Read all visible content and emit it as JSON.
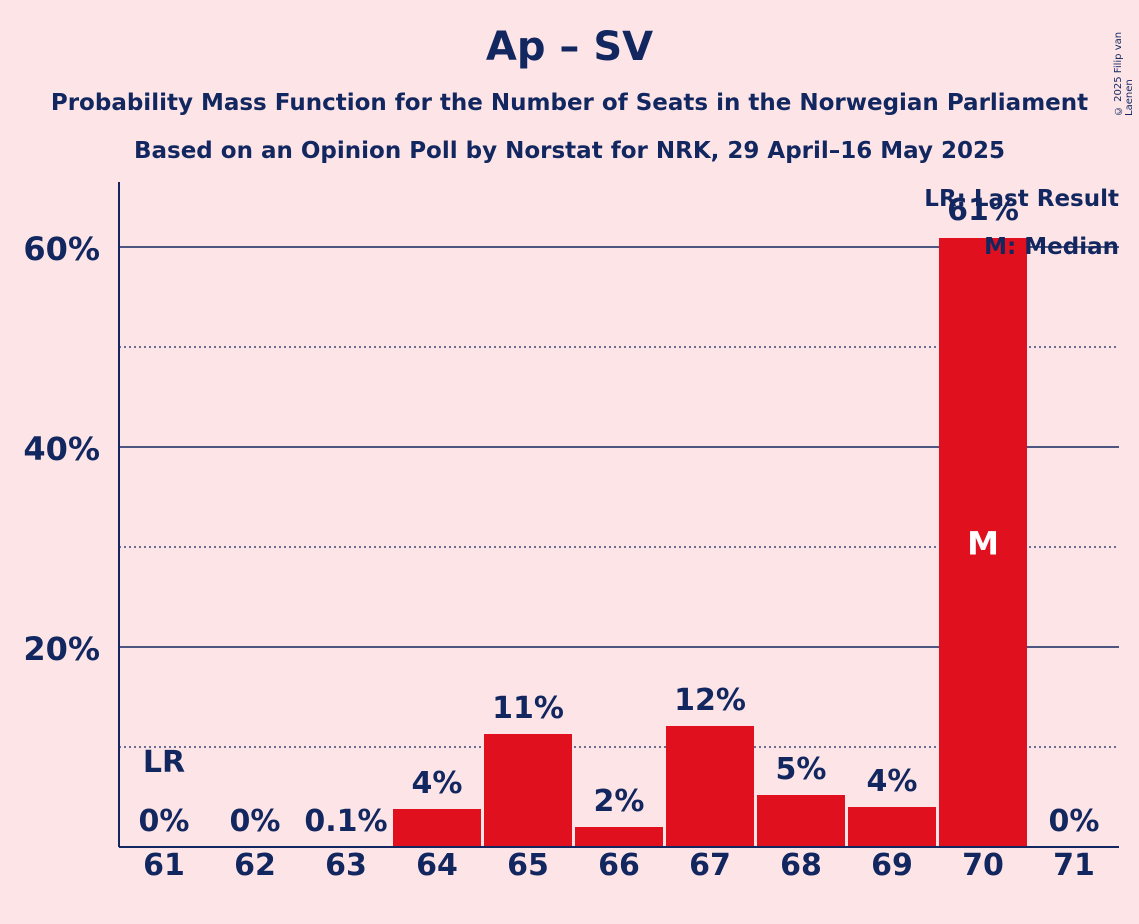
{
  "header": {
    "title": "Ap – SV",
    "subtitle1": "Probability Mass Function for the Number of Seats in the Norwegian Parliament",
    "subtitle2": "Based on an Opinion Poll by Norstat for NRK, 29 April–16 May 2025",
    "copyright": "© 2025 Filip van Laenen"
  },
  "legend": {
    "last_result": "LR: Last Result",
    "median": "M: Median"
  },
  "colors": {
    "background": "#fde5e7",
    "bar": "#e0101f",
    "text": "#12275f"
  },
  "chart_data": {
    "type": "bar",
    "categories": [
      "61",
      "62",
      "63",
      "64",
      "65",
      "66",
      "67",
      "68",
      "69",
      "70",
      "71"
    ],
    "values": [
      0,
      0,
      0.1,
      3.8,
      11.3,
      2.0,
      12.1,
      5.2,
      4.0,
      60.9,
      0
    ],
    "value_labels": [
      "0%",
      "0%",
      "0.1%",
      "4%",
      "11%",
      "2%",
      "12%",
      "5%",
      "4%",
      "61%",
      "0%"
    ],
    "y_ticks": [
      {
        "value": 20,
        "label": "20%"
      },
      {
        "value": 40,
        "label": "40%"
      },
      {
        "value": 60,
        "label": "60%"
      }
    ],
    "minor_gridlines": [
      10,
      30,
      50
    ],
    "ylim": [
      0,
      66
    ],
    "last_result_category": "61",
    "last_result_marker": "LR",
    "median_category": "70",
    "median_marker": "M",
    "legend_position": "top-right"
  }
}
